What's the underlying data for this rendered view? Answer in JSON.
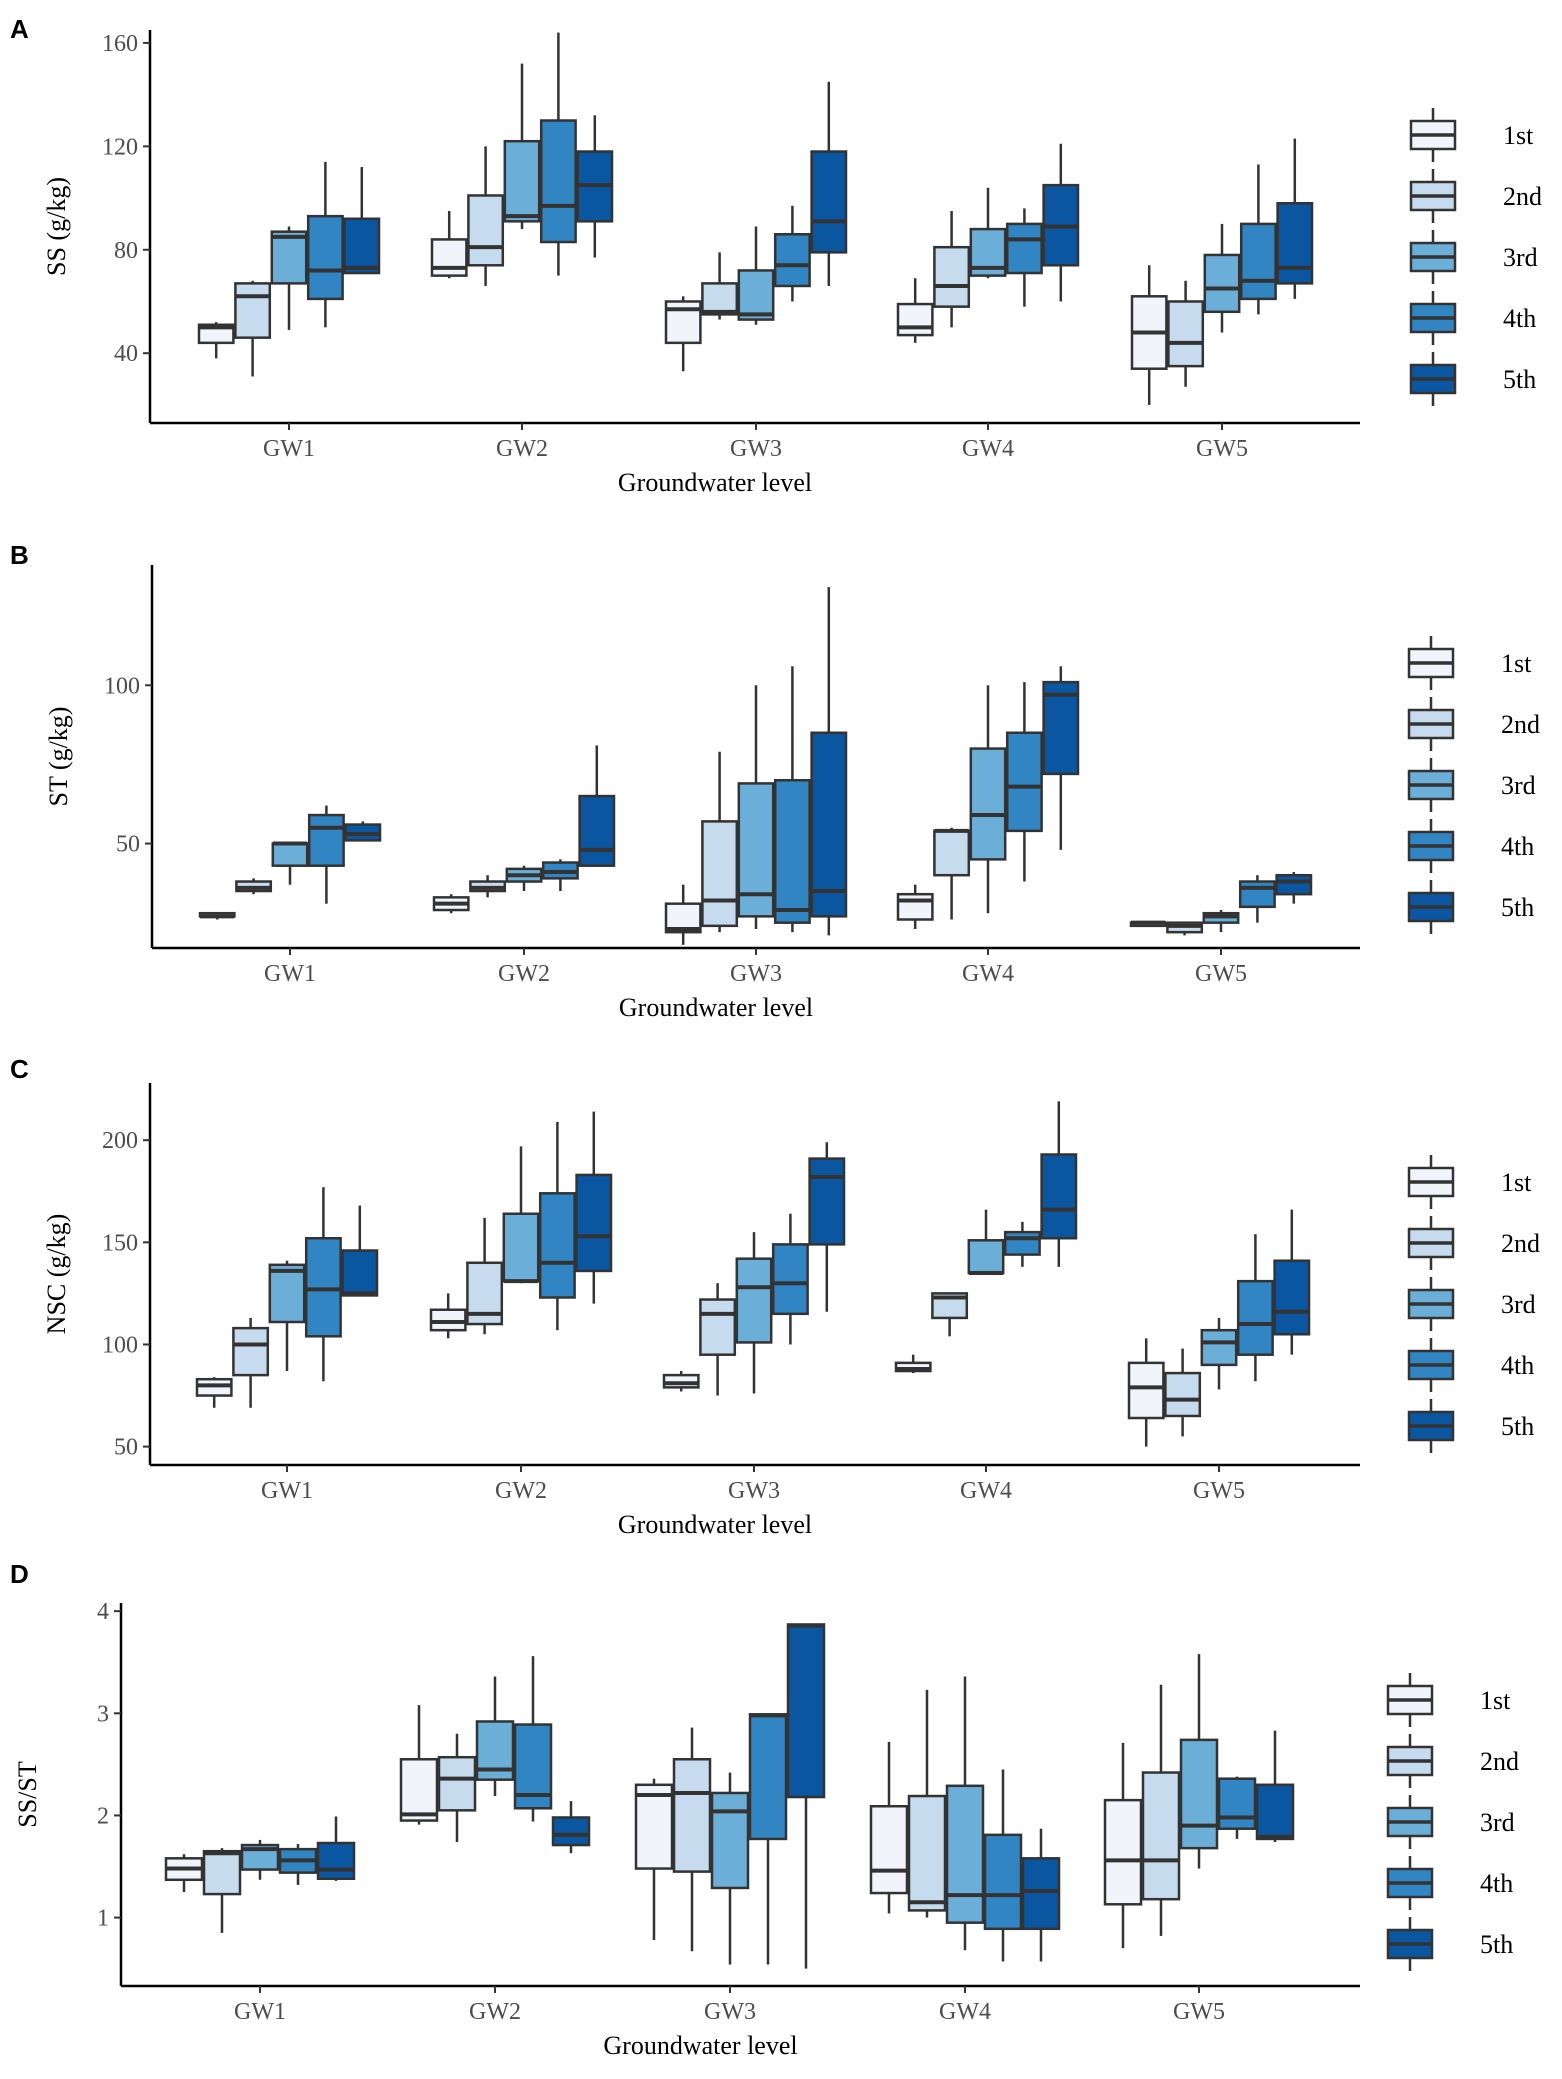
{
  "chart_data": [
    {
      "panel": "A",
      "type": "boxplot",
      "xlabel": "Groundwater level",
      "ylabel": "SS (g/kg)",
      "categories": [
        "GW1",
        "GW2",
        "GW3",
        "GW4",
        "GW5"
      ],
      "yticks": [
        40,
        80,
        120,
        160
      ],
      "ylim": [
        13,
        165
      ],
      "series": [
        {
          "name": "1st",
          "color": "#f1f4fb",
          "boxes": [
            {
              "min": 38,
              "q1": 44,
              "median": 50,
              "q3": 51,
              "max": 52
            },
            {
              "min": 69,
              "q1": 70,
              "median": 73,
              "q3": 84,
              "max": 95
            },
            {
              "min": 33,
              "q1": 44,
              "median": 57,
              "q3": 60,
              "max": 62
            },
            {
              "min": 44,
              "q1": 47,
              "median": 50,
              "q3": 59,
              "max": 69
            },
            {
              "min": 20,
              "q1": 34,
              "median": 48,
              "q3": 62,
              "max": 74
            }
          ]
        },
        {
          "name": "2nd",
          "color": "#c7dbee",
          "boxes": [
            {
              "min": 31,
              "q1": 46,
              "median": 62,
              "q3": 67,
              "max": 68
            },
            {
              "min": 66,
              "q1": 74,
              "median": 81,
              "q3": 101,
              "max": 120
            },
            {
              "min": 53,
              "q1": 55,
              "median": 56,
              "q3": 67,
              "max": 79
            },
            {
              "min": 50,
              "q1": 58,
              "median": 66,
              "q3": 81,
              "max": 95
            },
            {
              "min": 27,
              "q1": 35,
              "median": 44,
              "q3": 60,
              "max": 68
            }
          ]
        },
        {
          "name": "3rd",
          "color": "#6baed8",
          "boxes": [
            {
              "min": 49,
              "q1": 67,
              "median": 85,
              "q3": 87,
              "max": 89
            },
            {
              "min": 88,
              "q1": 91,
              "median": 93,
              "q3": 122,
              "max": 152
            },
            {
              "min": 51,
              "q1": 53,
              "median": 55,
              "q3": 72,
              "max": 89
            },
            {
              "min": 69,
              "q1": 70,
              "median": 73,
              "q3": 88,
              "max": 104
            },
            {
              "min": 48,
              "q1": 56,
              "median": 65,
              "q3": 78,
              "max": 90
            }
          ]
        },
        {
          "name": "4th",
          "color": "#3285c3",
          "boxes": [
            {
              "min": 50,
              "q1": 61,
              "median": 72,
              "q3": 93,
              "max": 114
            },
            {
              "min": 70,
              "q1": 83,
              "median": 97,
              "q3": 130,
              "max": 164
            },
            {
              "min": 60,
              "q1": 66,
              "median": 74,
              "q3": 86,
              "max": 97
            },
            {
              "min": 58,
              "q1": 71,
              "median": 84,
              "q3": 90,
              "max": 96
            },
            {
              "min": 55,
              "q1": 61,
              "median": 68,
              "q3": 90,
              "max": 113
            }
          ]
        },
        {
          "name": "5th",
          "color": "#0b56a0",
          "boxes": [
            {
              "min": 71,
              "q1": 71,
              "median": 73,
              "q3": 92,
              "max": 112
            },
            {
              "min": 77,
              "q1": 91,
              "median": 105,
              "q3": 118,
              "max": 132
            },
            {
              "min": 66,
              "q1": 79,
              "median": 91,
              "q3": 118,
              "max": 145
            },
            {
              "min": 60,
              "q1": 74,
              "median": 89,
              "q3": 105,
              "max": 121
            },
            {
              "min": 61,
              "q1": 67,
              "median": 73,
              "q3": 98,
              "max": 123
            }
          ]
        }
      ]
    },
    {
      "panel": "B",
      "type": "boxplot",
      "xlabel": "Groundwater level",
      "ylabel": "ST (g/kg)",
      "categories": [
        "GW1",
        "GW2",
        "GW3",
        "GW4",
        "GW5"
      ],
      "yticks": [
        50,
        100
      ],
      "ylim": [
        17,
        138
      ],
      "series": [
        {
          "name": "1st",
          "color": "#f1f4fb",
          "boxes": [
            {
              "min": 26,
              "q1": 27,
              "median": 27,
              "q3": 28,
              "max": 28
            },
            {
              "min": 28,
              "q1": 29,
              "median": 31,
              "q3": 33,
              "max": 34
            },
            {
              "min": 18,
              "q1": 22,
              "median": 23,
              "q3": 31,
              "max": 37
            },
            {
              "min": 23,
              "q1": 26,
              "median": 32,
              "q3": 34,
              "max": 37
            },
            {
              "min": 24,
              "q1": 24,
              "median": 25,
              "q3": 25,
              "max": 25
            }
          ]
        },
        {
          "name": "2nd",
          "color": "#c7dbee",
          "boxes": [
            {
              "min": 34,
              "q1": 35,
              "median": 36,
              "q3": 38,
              "max": 39
            },
            {
              "min": 33,
              "q1": 35,
              "median": 36,
              "q3": 38,
              "max": 40
            },
            {
              "min": 22,
              "q1": 24,
              "median": 32,
              "q3": 57,
              "max": 79
            },
            {
              "min": 26,
              "q1": 40,
              "median": 54,
              "q3": 54,
              "max": 55
            },
            {
              "min": 21,
              "q1": 22,
              "median": 24,
              "q3": 25,
              "max": 25
            }
          ]
        },
        {
          "name": "3rd",
          "color": "#6baed8",
          "boxes": [
            {
              "min": 37,
              "q1": 43,
              "median": 50,
              "q3": 50,
              "max": 50
            },
            {
              "min": 35,
              "q1": 38,
              "median": 40,
              "q3": 42,
              "max": 43
            },
            {
              "min": 23,
              "q1": 27,
              "median": 34,
              "q3": 69,
              "max": 100
            },
            {
              "min": 28,
              "q1": 45,
              "median": 59,
              "q3": 80,
              "max": 100
            },
            {
              "min": 22,
              "q1": 25,
              "median": 27,
              "q3": 28,
              "max": 29
            }
          ]
        },
        {
          "name": "4th",
          "color": "#3285c3",
          "boxes": [
            {
              "min": 31,
              "q1": 43,
              "median": 55,
              "q3": 59,
              "max": 62
            },
            {
              "min": 35,
              "q1": 39,
              "median": 41,
              "q3": 44,
              "max": 45
            },
            {
              "min": 22,
              "q1": 25,
              "median": 29,
              "q3": 70,
              "max": 106
            },
            {
              "min": 38,
              "q1": 54,
              "median": 68,
              "q3": 85,
              "max": 101
            },
            {
              "min": 25,
              "q1": 30,
              "median": 36,
              "q3": 38,
              "max": 40
            }
          ]
        },
        {
          "name": "5th",
          "color": "#0b56a0",
          "boxes": [
            {
              "min": 51,
              "q1": 51,
              "median": 53,
              "q3": 56,
              "max": 57
            },
            {
              "min": 43,
              "q1": 43,
              "median": 48,
              "q3": 65,
              "max": 81
            },
            {
              "min": 21,
              "q1": 27,
              "median": 35,
              "q3": 85,
              "max": 131
            },
            {
              "min": 48,
              "q1": 72,
              "median": 97,
              "q3": 101,
              "max": 106
            },
            {
              "min": 31,
              "q1": 34,
              "median": 38,
              "q3": 40,
              "max": 41
            }
          ]
        }
      ]
    },
    {
      "panel": "C",
      "type": "boxplot",
      "xlabel": "Groundwater level",
      "ylabel": "NSC (g/kg)",
      "categories": [
        "GW1",
        "GW2",
        "GW3",
        "GW4",
        "GW5"
      ],
      "yticks": [
        50,
        100,
        150,
        200
      ],
      "ylim": [
        41,
        228
      ],
      "series": [
        {
          "name": "1st",
          "color": "#f1f4fb",
          "boxes": [
            {
              "min": 69,
              "q1": 75,
              "median": 80,
              "q3": 83,
              "max": 84
            },
            {
              "min": 103,
              "q1": 107,
              "median": 111,
              "q3": 117,
              "max": 125
            },
            {
              "min": 77,
              "q1": 79,
              "median": 81,
              "q3": 85,
              "max": 87
            },
            {
              "min": 86,
              "q1": 87,
              "median": 88,
              "q3": 91,
              "max": 95
            },
            {
              "min": 50,
              "q1": 64,
              "median": 79,
              "q3": 91,
              "max": 103
            }
          ]
        },
        {
          "name": "2nd",
          "color": "#c7dbee",
          "boxes": [
            {
              "min": 69,
              "q1": 85,
              "median": 100,
              "q3": 108,
              "max": 113
            },
            {
              "min": 105,
              "q1": 110,
              "median": 115,
              "q3": 140,
              "max": 162
            },
            {
              "min": 75,
              "q1": 95,
              "median": 115,
              "q3": 122,
              "max": 130
            },
            {
              "min": 104,
              "q1": 113,
              "median": 123,
              "q3": 125,
              "max": 125
            },
            {
              "min": 55,
              "q1": 65,
              "median": 73,
              "q3": 86,
              "max": 98
            }
          ]
        },
        {
          "name": "3rd",
          "color": "#6baed8",
          "boxes": [
            {
              "min": 87,
              "q1": 111,
              "median": 136,
              "q3": 139,
              "max": 141
            },
            {
              "min": 130,
              "q1": 131,
              "median": 131,
              "q3": 164,
              "max": 197
            },
            {
              "min": 76,
              "q1": 101,
              "median": 128,
              "q3": 142,
              "max": 155
            },
            {
              "min": 134,
              "q1": 135,
              "median": 135,
              "q3": 151,
              "max": 166
            },
            {
              "min": 78,
              "q1": 90,
              "median": 101,
              "q3": 107,
              "max": 113
            }
          ]
        },
        {
          "name": "4th",
          "color": "#3285c3",
          "boxes": [
            {
              "min": 82,
              "q1": 104,
              "median": 127,
              "q3": 152,
              "max": 177
            },
            {
              "min": 107,
              "q1": 123,
              "median": 140,
              "q3": 174,
              "max": 209
            },
            {
              "min": 100,
              "q1": 115,
              "median": 130,
              "q3": 149,
              "max": 164
            },
            {
              "min": 138,
              "q1": 144,
              "median": 152,
              "q3": 155,
              "max": 160
            },
            {
              "min": 82,
              "q1": 95,
              "median": 110,
              "q3": 131,
              "max": 154
            }
          ]
        },
        {
          "name": "5th",
          "color": "#0b56a0",
          "boxes": [
            {
              "min": 124,
              "q1": 124,
              "median": 125,
              "q3": 146,
              "max": 168
            },
            {
              "min": 120,
              "q1": 136,
              "median": 153,
              "q3": 183,
              "max": 214
            },
            {
              "min": 116,
              "q1": 149,
              "median": 182,
              "q3": 191,
              "max": 199
            },
            {
              "min": 138,
              "q1": 152,
              "median": 166,
              "q3": 193,
              "max": 219
            },
            {
              "min": 95,
              "q1": 105,
              "median": 116,
              "q3": 141,
              "max": 166
            }
          ]
        }
      ]
    },
    {
      "panel": "D",
      "type": "boxplot",
      "xlabel": "Groundwater level",
      "ylabel": "SS/ST",
      "categories": [
        "GW1",
        "GW2",
        "GW3",
        "GW4",
        "GW5"
      ],
      "yticks": [
        1,
        2,
        3,
        4
      ],
      "ylim": [
        0.33,
        4.08
      ],
      "series": [
        {
          "name": "1st",
          "color": "#f1f4fb",
          "boxes": [
            {
              "min": 1.25,
              "q1": 1.37,
              "median": 1.48,
              "q3": 1.58,
              "max": 1.62
            },
            {
              "min": 1.91,
              "q1": 1.95,
              "median": 2.01,
              "q3": 2.55,
              "max": 3.08
            },
            {
              "min": 0.78,
              "q1": 1.48,
              "median": 2.2,
              "q3": 2.3,
              "max": 2.36
            },
            {
              "min": 1.04,
              "q1": 1.24,
              "median": 1.46,
              "q3": 2.09,
              "max": 2.72
            },
            {
              "min": 0.7,
              "q1": 1.13,
              "median": 1.56,
              "q3": 2.15,
              "max": 2.71
            }
          ]
        },
        {
          "name": "2nd",
          "color": "#c7dbee",
          "boxes": [
            {
              "min": 0.85,
              "q1": 1.23,
              "median": 1.63,
              "q3": 1.65,
              "max": 1.68
            },
            {
              "min": 1.74,
              "q1": 2.05,
              "median": 2.36,
              "q3": 2.57,
              "max": 2.8
            },
            {
              "min": 0.67,
              "q1": 1.45,
              "median": 2.22,
              "q3": 2.55,
              "max": 2.86
            },
            {
              "min": 1.0,
              "q1": 1.07,
              "median": 1.15,
              "q3": 2.19,
              "max": 3.23
            },
            {
              "min": 0.82,
              "q1": 1.18,
              "median": 1.56,
              "q3": 2.42,
              "max": 3.28
            }
          ]
        },
        {
          "name": "3rd",
          "color": "#6baed8",
          "boxes": [
            {
              "min": 1.37,
              "q1": 1.47,
              "median": 1.67,
              "q3": 1.71,
              "max": 1.76
            },
            {
              "min": 2.19,
              "q1": 2.35,
              "median": 2.45,
              "q3": 2.92,
              "max": 3.36
            },
            {
              "min": 0.54,
              "q1": 1.29,
              "median": 2.04,
              "q3": 2.22,
              "max": 2.42
            },
            {
              "min": 0.68,
              "q1": 0.95,
              "median": 1.22,
              "q3": 2.29,
              "max": 3.36
            },
            {
              "min": 1.48,
              "q1": 1.68,
              "median": 1.9,
              "q3": 2.74,
              "max": 3.58
            }
          ]
        },
        {
          "name": "4th",
          "color": "#3285c3",
          "boxes": [
            {
              "min": 1.32,
              "q1": 1.44,
              "median": 1.56,
              "q3": 1.67,
              "max": 1.72
            },
            {
              "min": 1.94,
              "q1": 2.07,
              "median": 2.2,
              "q3": 2.89,
              "max": 3.56
            },
            {
              "min": 0.54,
              "q1": 1.77,
              "median": 2.98,
              "q3": 2.99,
              "max": 3.0
            },
            {
              "min": 0.57,
              "q1": 0.89,
              "median": 1.22,
              "q3": 1.81,
              "max": 2.45
            },
            {
              "min": 1.77,
              "q1": 1.87,
              "median": 1.98,
              "q3": 2.36,
              "max": 2.38
            }
          ]
        },
        {
          "name": "5th",
          "color": "#0b56a0",
          "boxes": [
            {
              "min": 1.36,
              "q1": 1.38,
              "median": 1.47,
              "q3": 1.73,
              "max": 1.99
            },
            {
              "min": 1.63,
              "q1": 1.71,
              "median": 1.81,
              "q3": 1.98,
              "max": 2.14
            },
            {
              "min": 0.5,
              "q1": 2.18,
              "median": 3.86,
              "q3": 3.87,
              "max": 3.87
            },
            {
              "min": 0.57,
              "q1": 0.89,
              "median": 1.26,
              "q3": 1.58,
              "max": 1.87
            },
            {
              "min": 1.74,
              "q1": 1.77,
              "median": 1.79,
              "q3": 2.3,
              "max": 2.83
            }
          ]
        }
      ]
    }
  ]
}
